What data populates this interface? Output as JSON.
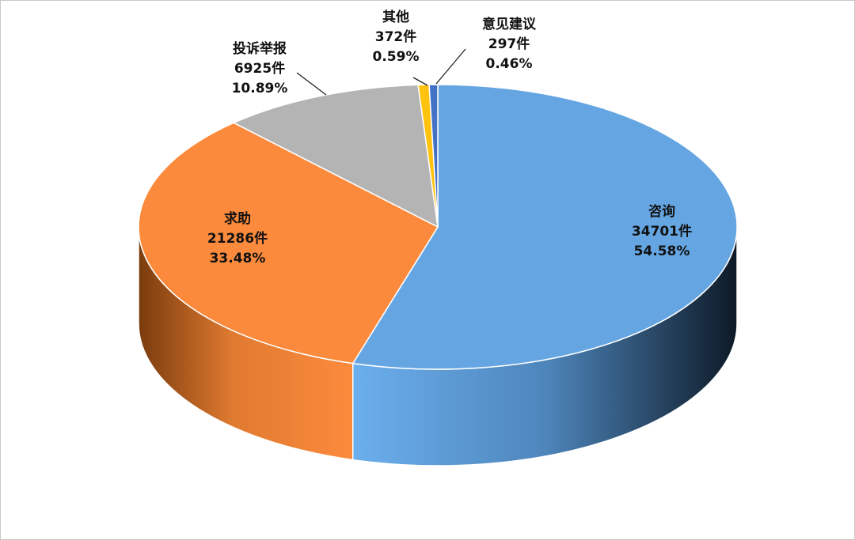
{
  "chart_data": {
    "type": "pie3d",
    "categories": [
      "咨询",
      "求助",
      "投诉举报",
      "其他",
      "意见建议"
    ],
    "values": [
      54.58,
      33.48,
      10.89,
      0.59,
      0.46
    ],
    "value_labels": [
      "54.58%",
      "33.48%",
      "10.89%",
      "0.59%",
      "0.46%"
    ],
    "counts": [
      34701,
      21286,
      6925,
      372,
      297
    ],
    "count_labels": [
      "34701件",
      "21286件",
      "6925件",
      "372件",
      "297件"
    ],
    "colors": [
      "#65a6e2",
      "#fb8a3c",
      "#b4b4b4",
      "#ffc20e",
      "#4472c4"
    ]
  }
}
